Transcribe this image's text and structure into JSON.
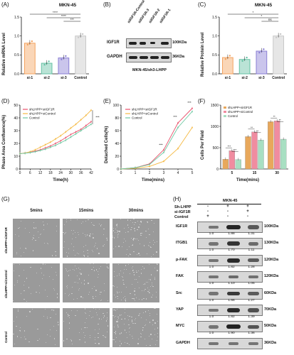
{
  "panels": {
    "A": {
      "letter": "(A)",
      "title": "MKN-45",
      "ylabel": "Relative mRNA Level",
      "chart_data": {
        "type": "bar",
        "categories": [
          "si-1",
          "si-2",
          "si-3",
          "Control"
        ],
        "values": [
          0.81,
          0.28,
          0.42,
          1.0
        ],
        "ylim": [
          0.0,
          1.5
        ],
        "yticks": [
          "0.0",
          "0.5",
          "1.0",
          "1.5"
        ],
        "colors": [
          "#f4a460",
          "#66c2a5",
          "#8a7fd4",
          "#c8c8c8"
        ],
        "significance": [
          "****",
          "****",
          "***"
        ]
      }
    },
    "B": {
      "letter": "(B)",
      "lanes": [
        "siIGF1R-Control",
        "siIGF1R-3",
        "siIGF1R-2",
        "siIGF1R-1"
      ],
      "rows": [
        {
          "label": "IGF1R",
          "kda": "100KDa"
        },
        {
          "label": "GAPDH",
          "kda": "36KDa"
        }
      ],
      "caption": "MKN-45/sh3-LHPP"
    },
    "C": {
      "letter": "(C)",
      "title": "MKN-45",
      "ylabel": "Relative Protein Level",
      "chart_data": {
        "type": "bar",
        "categories": [
          "si-1",
          "si-2",
          "si-3",
          "Control"
        ],
        "values": [
          0.43,
          0.38,
          0.6,
          1.0
        ],
        "ylim": [
          0.0,
          1.5
        ],
        "yticks": [
          "0.0",
          "0.5",
          "1.0",
          "1.5"
        ],
        "colors": [
          "#f4a460",
          "#66c2a5",
          "#8a7fd4",
          "#c8c8c8"
        ],
        "significance": [
          "*",
          "*",
          "ns"
        ]
      }
    },
    "D": {
      "letter": "(D)",
      "ylabel": "Phase Area Confluence(%)",
      "xlabel": "Time(h)",
      "chart_data": {
        "type": "line",
        "x": [
          0,
          3,
          6,
          9,
          12,
          15,
          18,
          21,
          24,
          27,
          30,
          33,
          36,
          39,
          42
        ],
        "xticks": [
          "0",
          "6",
          "12",
          "18",
          "24",
          "30",
          "36",
          "42"
        ],
        "yticks": [
          "0",
          "10",
          "20",
          "30",
          "40",
          "50"
        ],
        "ylim": [
          0,
          50
        ],
        "series": [
          {
            "name": "shLHPP+siIGF1R",
            "color": "#e8516b",
            "values": [
              12,
              12.5,
              13,
              14,
              15,
              16.5,
              18,
              20,
              22,
              24.5,
              27,
              29,
              31,
              34,
              37
            ]
          },
          {
            "name": "shLHPP+siControl",
            "color": "#f5b942",
            "values": [
              12,
              12.5,
              13.5,
              15,
              17,
              19,
              21,
              23.5,
              26,
              29,
              32,
              35,
              38.5,
              42,
              46
            ]
          },
          {
            "name": "Control",
            "color": "#6cc7a0",
            "values": [
              12,
              12.3,
              12.8,
              13.5,
              14.5,
              15.5,
              17,
              18.5,
              20.5,
              22.5,
              25,
              27.5,
              30,
              32.5,
              35
            ]
          }
        ],
        "significance": "***"
      }
    },
    "E": {
      "letter": "(E)",
      "ylabel": "Detached Cells(%)",
      "xlabel": "Time(mins)",
      "chart_data": {
        "type": "line",
        "x": [
          0,
          1,
          2,
          3,
          4,
          5
        ],
        "xticks": [
          "0",
          "1",
          "2",
          "3",
          "4",
          "5"
        ],
        "yticks": [
          "0",
          "20",
          "40",
          "60",
          "80",
          "100"
        ],
        "ylim": [
          0,
          100
        ],
        "series": [
          {
            "name": "shLHPP+siIGF1R",
            "color": "#e8516b",
            "values": [
              0,
              2,
              8,
              30,
              72,
              95
            ]
          },
          {
            "name": "shLHPP+siControl",
            "color": "#f5b942",
            "values": [
              0,
              1,
              4,
              12,
              32,
              65
            ]
          },
          {
            "name": "Control",
            "color": "#6cc7a0",
            "values": [
              0,
              2,
              7,
              26,
              65,
              90
            ]
          }
        ],
        "annotations": [
          "***",
          "***",
          "***"
        ]
      }
    },
    "F": {
      "letter": "(F)",
      "ylabel": "Cells Per Field",
      "xlabel": "Time(mins)",
      "chart_data": {
        "type": "bar",
        "categories": [
          "5",
          "15",
          "30"
        ],
        "yticks": [
          "0",
          "500",
          "1000",
          "1500"
        ],
        "ylim": [
          0,
          1500
        ],
        "series": [
          {
            "name": "shLHPP+siIGF1R",
            "color": "#e8a85c",
            "values": [
              230,
              760,
              1110
            ]
          },
          {
            "name": "shLHPP+siControl",
            "color": "#f08ca0",
            "values": [
              430,
              870,
              1130
            ]
          },
          {
            "name": "Control",
            "color": "#a8dfc2",
            "values": [
              220,
              680,
              700
            ]
          }
        ],
        "significance": [
          "***",
          "***",
          "**",
          "**",
          "**",
          "**"
        ]
      }
    },
    "G": {
      "letter": "(G)",
      "columns": [
        "5mins",
        "15mins",
        "30mins"
      ],
      "rows": [
        "shLHPP+siIGF1R",
        "shLHPP+siControl",
        "Control"
      ]
    },
    "H": {
      "letter": "(H)",
      "header": "MKN-45",
      "conditions": [
        {
          "label": "Sh-LHPP",
          "signs": [
            "-",
            "+",
            "+"
          ]
        },
        {
          "label": "si-IGF1R",
          "signs": [
            "-",
            "-",
            "+"
          ]
        },
        {
          "label": "Control",
          "signs": [
            "+",
            "-",
            "-"
          ]
        }
      ],
      "blots": [
        {
          "label": "IGF1R",
          "kda": "100KDa",
          "values": [
            "1.0",
            "1.88",
            "1.31"
          ]
        },
        {
          "label": "ITGB1",
          "kda": "130KDa",
          "values": [
            "1.0",
            "1.70",
            "1.11"
          ]
        },
        {
          "label": "p-FAK",
          "kda": "120KDa",
          "values": [
            "1.0",
            "1.82",
            "1.28"
          ]
        },
        {
          "label": "FAK",
          "kda": "120KDa",
          "values": [
            "1.0",
            "1.10",
            "1.05"
          ]
        },
        {
          "label": "Src",
          "kda": "60KDa",
          "values": [
            "1.0",
            "1.66",
            "1.27"
          ]
        },
        {
          "label": "YAP",
          "kda": "70KDa",
          "values": [
            "1.0",
            "1.82",
            "1.39"
          ]
        },
        {
          "label": "MYC",
          "kda": "50KDa",
          "values": [
            "1.0",
            "1.90",
            "1.36"
          ]
        },
        {
          "label": "GAPDH",
          "kda": "36KDa",
          "values": []
        }
      ]
    }
  }
}
